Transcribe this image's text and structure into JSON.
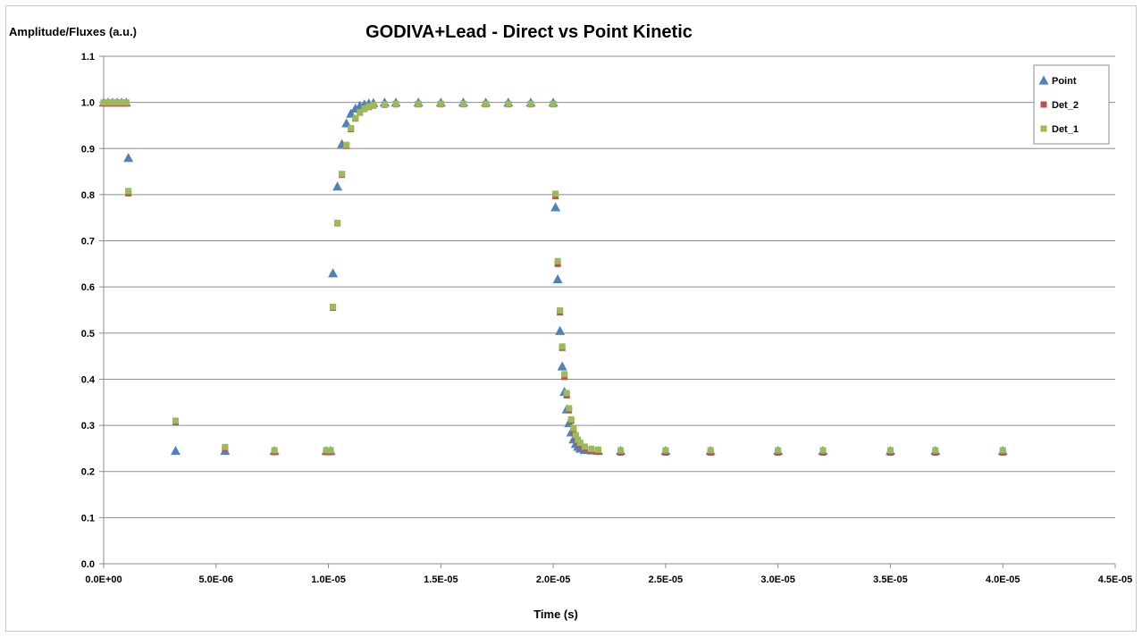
{
  "chart_data": {
    "type": "scatter",
    "title": "GODIVA+Lead - Direct vs Point  Kinetic",
    "ylabel": "Amplitude/Fluxes (a.u.)",
    "xlabel": "Time (s)",
    "xlim": [
      0,
      4.5e-05
    ],
    "ylim": [
      0,
      1.1
    ],
    "x_tick_labels": [
      "0.0E+00",
      "5.0E-06",
      "1.0E-05",
      "1.5E-05",
      "2.0E-05",
      "2.5E-05",
      "3.0E-05",
      "3.5E-05",
      "4.0E-05",
      "4.5E-05"
    ],
    "y_tick_labels": [
      "0.0",
      "0.1",
      "0.2",
      "0.3",
      "0.4",
      "0.5",
      "0.6",
      "0.7",
      "0.8",
      "0.9",
      "1.0",
      "1.1"
    ],
    "grid": "horizontal",
    "legend_position": "top-right",
    "colors": {
      "Point": "#4f81bd",
      "Det_2": "#c0504d",
      "Det_1": "#9bbb59"
    },
    "series": [
      {
        "name": "Point",
        "marker": "triangle",
        "x": [
          0,
          2e-07,
          4e-07,
          6e-07,
          8e-07,
          1e-06,
          1.1e-06,
          3.2e-06,
          5.4e-06,
          7.6e-06,
          9.9e-06,
          1.01e-05,
          1.02e-05,
          1.04e-05,
          1.06e-05,
          1.08e-05,
          1.1e-05,
          1.12e-05,
          1.14e-05,
          1.16e-05,
          1.18e-05,
          1.2e-05,
          1.25e-05,
          1.3e-05,
          1.4e-05,
          1.5e-05,
          1.6e-05,
          1.7e-05,
          1.8e-05,
          1.9e-05,
          2e-05,
          2.01e-05,
          2.02e-05,
          2.03e-05,
          2.04e-05,
          2.05e-05,
          2.06e-05,
          2.07e-05,
          2.08e-05,
          2.09e-05,
          2.1e-05,
          2.11e-05,
          2.12e-05,
          2.14e-05,
          2.17e-05,
          2.2e-05,
          2.3e-05,
          2.5e-05,
          2.7e-05,
          3e-05,
          3.2e-05,
          3.5e-05,
          3.7e-05,
          4e-05
        ],
        "y": [
          1,
          1,
          1,
          1,
          1,
          1,
          0.88,
          0.245,
          0.245,
          0.245,
          0.245,
          0.245,
          0.63,
          0.818,
          0.91,
          0.955,
          0.976,
          0.987,
          0.993,
          0.996,
          0.998,
          0.999,
          1,
          1,
          1,
          1,
          1,
          1,
          1,
          1,
          1,
          0.773,
          0.617,
          0.505,
          0.428,
          0.373,
          0.335,
          0.305,
          0.285,
          0.27,
          0.26,
          0.254,
          0.25,
          0.247,
          0.246,
          0.245,
          0.245,
          0.245,
          0.245,
          0.245,
          0.245,
          0.245,
          0.245,
          0.245
        ]
      },
      {
        "name": "Det_2",
        "marker": "square",
        "x": [
          0,
          2e-07,
          4e-07,
          6e-07,
          8e-07,
          1e-06,
          1.1e-06,
          3.2e-06,
          5.4e-06,
          7.6e-06,
          9.9e-06,
          1.01e-05,
          1.02e-05,
          1.04e-05,
          1.06e-05,
          1.08e-05,
          1.1e-05,
          1.12e-05,
          1.14e-05,
          1.16e-05,
          1.18e-05,
          1.2e-05,
          1.25e-05,
          1.3e-05,
          1.4e-05,
          1.5e-05,
          1.6e-05,
          1.7e-05,
          1.8e-05,
          1.9e-05,
          2e-05,
          2.01e-05,
          2.02e-05,
          2.03e-05,
          2.04e-05,
          2.05e-05,
          2.06e-05,
          2.07e-05,
          2.08e-05,
          2.09e-05,
          2.1e-05,
          2.11e-05,
          2.12e-05,
          2.14e-05,
          2.17e-05,
          2.2e-05,
          2.3e-05,
          2.5e-05,
          2.7e-05,
          3e-05,
          3.2e-05,
          3.5e-05,
          3.7e-05,
          4e-05
        ],
        "y": [
          0.998,
          0.998,
          0.998,
          0.998,
          0.998,
          0.998,
          0.803,
          0.307,
          0.25,
          0.242,
          0.242,
          0.242,
          0.555,
          0.738,
          0.843,
          0.906,
          0.942,
          0.965,
          0.978,
          0.986,
          0.99,
          0.993,
          0.995,
          0.996,
          0.996,
          0.996,
          0.996,
          0.996,
          0.996,
          0.996,
          0.996,
          0.797,
          0.65,
          0.545,
          0.468,
          0.405,
          0.365,
          0.333,
          0.31,
          0.29,
          0.275,
          0.265,
          0.258,
          0.251,
          0.246,
          0.243,
          0.241,
          0.241,
          0.241,
          0.241,
          0.241,
          0.241,
          0.241,
          0.241
        ]
      },
      {
        "name": "Det_1",
        "marker": "square",
        "x": [
          0,
          2e-07,
          4e-07,
          6e-07,
          8e-07,
          1e-06,
          1.1e-06,
          3.2e-06,
          5.4e-06,
          7.6e-06,
          9.9e-06,
          1.01e-05,
          1.02e-05,
          1.04e-05,
          1.06e-05,
          1.08e-05,
          1.1e-05,
          1.12e-05,
          1.14e-05,
          1.16e-05,
          1.18e-05,
          1.2e-05,
          1.25e-05,
          1.3e-05,
          1.4e-05,
          1.5e-05,
          1.6e-05,
          1.7e-05,
          1.8e-05,
          1.9e-05,
          2e-05,
          2.01e-05,
          2.02e-05,
          2.03e-05,
          2.04e-05,
          2.05e-05,
          2.06e-05,
          2.07e-05,
          2.08e-05,
          2.09e-05,
          2.1e-05,
          2.11e-05,
          2.12e-05,
          2.14e-05,
          2.17e-05,
          2.2e-05,
          2.3e-05,
          2.5e-05,
          2.7e-05,
          3e-05,
          3.2e-05,
          3.5e-05,
          3.7e-05,
          4e-05
        ],
        "y": [
          1,
          1,
          1,
          1,
          1,
          1,
          0.808,
          0.31,
          0.253,
          0.246,
          0.246,
          0.246,
          0.557,
          0.739,
          0.845,
          0.908,
          0.944,
          0.966,
          0.979,
          0.987,
          0.991,
          0.994,
          0.996,
          0.997,
          0.997,
          0.997,
          0.997,
          0.997,
          0.997,
          0.997,
          0.997,
          0.802,
          0.656,
          0.549,
          0.471,
          0.411,
          0.37,
          0.337,
          0.313,
          0.294,
          0.279,
          0.269,
          0.262,
          0.254,
          0.249,
          0.247,
          0.246,
          0.246,
          0.246,
          0.246,
          0.246,
          0.246,
          0.246,
          0.246
        ]
      }
    ]
  }
}
